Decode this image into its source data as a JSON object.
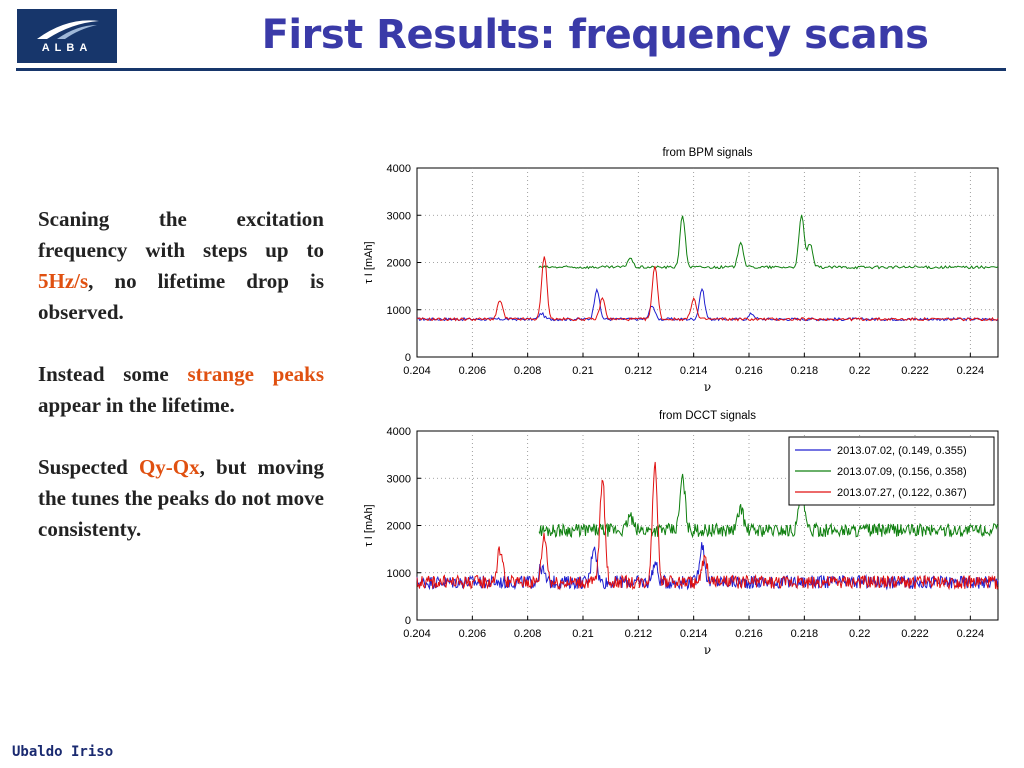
{
  "logo": {
    "text": "ALBA",
    "brand_color": "#17366b"
  },
  "title": "First Results: frequency scans",
  "paragraphs": {
    "p1": {
      "a": "Scaning the excitation frequency with steps up to ",
      "hl": "5Hz/s",
      "b": ", no lifetime drop is observed."
    },
    "p2": {
      "a": "Instead some ",
      "hl": "strange peaks",
      "b": " appear in the lifetime."
    },
    "p3": {
      "a": "Suspected ",
      "hl": "Qy-Qx",
      "b": ", but moving the tunes the peaks do not move consistenty."
    }
  },
  "highlight_color": "#e05010",
  "footer": "Ubaldo Iriso",
  "chart_data": [
    {
      "type": "line",
      "title": "from BPM signals",
      "xlabel": "ν",
      "ylabel": "τ I [mAh]",
      "xlim": [
        0.204,
        0.225
      ],
      "ylim": [
        0,
        4000
      ],
      "xticks": [
        "0.204",
        "0.206",
        "0.208",
        "0.21",
        "0.212",
        "0.214",
        "0.216",
        "0.218",
        "0.22",
        "0.222",
        "0.224"
      ],
      "yticks": [
        "0",
        "1000",
        "2000",
        "3000",
        "4000"
      ],
      "grid": true,
      "noise": "low",
      "series": [
        {
          "name": "2013.07.02, (0.149, 0.355)",
          "color": "#2020d0",
          "x_start": 0.204,
          "baseline": 800,
          "peaks": [
            [
              0.2085,
              120
            ],
            [
              0.2105,
              650
            ],
            [
              0.2125,
              300
            ],
            [
              0.2143,
              650
            ],
            [
              0.2161,
              120
            ]
          ]
        },
        {
          "name": "2013.07.09, (0.156, 0.358)",
          "color": "#108010",
          "x_start": 0.2084,
          "baseline": 1900,
          "peaks": [
            [
              0.2117,
              200
            ],
            [
              0.2136,
              1100
            ],
            [
              0.2157,
              550
            ],
            [
              0.2179,
              1100
            ],
            [
              0.2182,
              500
            ]
          ]
        },
        {
          "name": "2013.07.27, (0.122, 0.367)",
          "color": "#e01010",
          "x_start": 0.204,
          "baseline": 800,
          "peaks": [
            [
              0.207,
              400
            ],
            [
              0.2086,
              1350
            ],
            [
              0.2107,
              450
            ],
            [
              0.2126,
              1150
            ],
            [
              0.214,
              450
            ]
          ]
        }
      ]
    },
    {
      "type": "line",
      "title": "from DCCT signals",
      "xlabel": "ν",
      "ylabel": "τ I [mAh]",
      "xlim": [
        0.204,
        0.225
      ],
      "ylim": [
        0,
        4000
      ],
      "xticks": [
        "0.204",
        "0.206",
        "0.208",
        "0.21",
        "0.212",
        "0.214",
        "0.216",
        "0.218",
        "0.22",
        "0.222",
        "0.224"
      ],
      "yticks": [
        "0",
        "1000",
        "2000",
        "3000",
        "4000"
      ],
      "grid": true,
      "noise": "high",
      "legend": "top-right",
      "series": [
        {
          "name": "2013.07.02, (0.149, 0.355)",
          "color": "#2020d0",
          "x_start": 0.204,
          "baseline": 800,
          "peaks": [
            [
              0.2085,
              300
            ],
            [
              0.2104,
              800
            ],
            [
              0.2126,
              400
            ],
            [
              0.2143,
              800
            ]
          ]
        },
        {
          "name": "2013.07.09, (0.156, 0.358)",
          "color": "#108010",
          "x_start": 0.2084,
          "baseline": 1900,
          "peaks": [
            [
              0.2117,
              300
            ],
            [
              0.2136,
              1100
            ],
            [
              0.2157,
              500
            ],
            [
              0.2179,
              900
            ]
          ]
        },
        {
          "name": "2013.07.27, (0.122, 0.367)",
          "color": "#e01010",
          "x_start": 0.204,
          "baseline": 800,
          "peaks": [
            [
              0.207,
              700
            ],
            [
              0.2086,
              1000
            ],
            [
              0.2107,
              2200
            ],
            [
              0.2126,
              2500
            ],
            [
              0.2144,
              500
            ]
          ]
        }
      ]
    }
  ]
}
